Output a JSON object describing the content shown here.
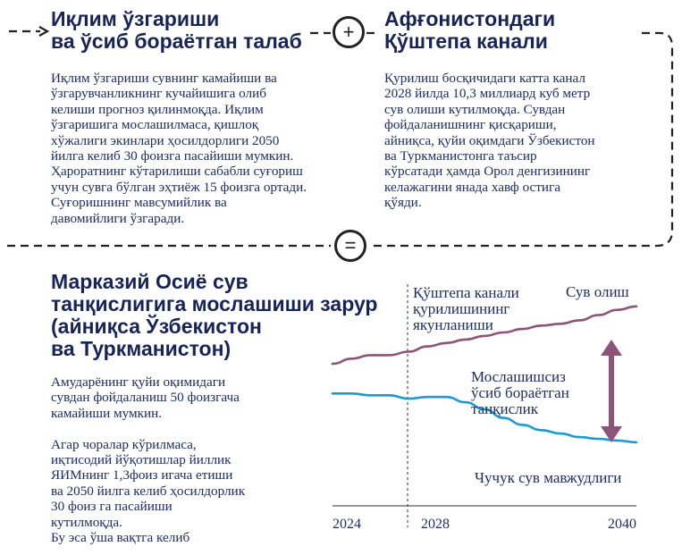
{
  "left_panel": {
    "title_line1": "Иқлим ўзгариши",
    "title_line2": "ва ўсиб бораётган талаб",
    "body": [
      "Иқлим ўзгариши сувнинг камайиши ва",
      "ўзгарувчанликнинг кучайишига олиб",
      "келиши прогноз қилинмоқда. Иқлим",
      "ўзгаришига мослашилмаса, қишлоқ",
      "хўжалиги экинлари ҳосилдорлиги 2050",
      "йилга келиб 30 фоизга пасайиши мумкин.",
      "Ҳароратнинг кўтарилиши сабабли суғориш",
      "учун сувга бўлган эҳтиёж 15 фоизга ортади.",
      "Суғоришнинг мавсумийлик ва",
      "давомийлиги ўзгаради."
    ]
  },
  "plus_symbol": "+",
  "equals_symbol": "=",
  "right_panel": {
    "title_line1": "Афғонистондаги",
    "title_line2": "Қўштепа канали",
    "body": [
      "Қурилиш босқичидаги катта канал",
      "2028 йилда 10,3 миллиард куб метр",
      "сув олиши кутилмоқда. Сувдан",
      "фойдаланишнинг қисқариши,",
      "айниқса, қуйи оқимдаги Ўзбекистон",
      "ва Туркманистонга таъсир",
      "кўрсатади ҳамда Орол денгизининг",
      "келажагини янада хавф остига",
      "қўяди."
    ]
  },
  "bottom_panel": {
    "title_lines": [
      "Марказий Осиё сув",
      "танқислигига мослашиши зарур",
      "(айниқса Ўзбекистон",
      "ва Туркманистон)"
    ],
    "body": [
      "Амударёнинг қуйи оқимидаги",
      "сувдан фойдаланиш 50 фоизгача",
      "камайиши мумкин.",
      "",
      "Агар чоралар кўрилмаса,",
      "иқтисодий йўқотишлар йиллик",
      "ЯИМнинг 1,3фоиз игача етиши",
      "ва 2050 йилга келиб ҳосилдорлик",
      "30 фоиз га пасайиши",
      "кутилмоқда.",
      "Бу эса ўша вақтга келиб"
    ]
  },
  "chart_data": {
    "type": "line",
    "x_ticks": [
      "2024",
      "2028",
      "2040"
    ],
    "xlim": [
      2024,
      2040
    ],
    "ylim": [
      0,
      100
    ],
    "marker": {
      "x": 2028,
      "label": [
        "Қўштепа канали",
        "қурилишининг",
        "якунланиши"
      ]
    },
    "gap_label": [
      "Мослашишсиз",
      "ўсиб бораётган",
      "танқислик"
    ],
    "series": [
      {
        "name": "Сув олиш",
        "color": "#8c5478",
        "x": [
          2024,
          2025,
          2026,
          2027,
          2028,
          2029,
          2030,
          2031,
          2032,
          2033,
          2034,
          2035,
          2036,
          2037,
          2038,
          2039,
          2040
        ],
        "y": [
          63,
          66,
          68,
          68,
          70,
          73,
          75,
          77,
          79,
          81,
          83,
          85,
          86,
          88,
          91,
          94,
          96
        ]
      },
      {
        "name": "Чучук сув мавжудлиги",
        "color": "#1a9ad6",
        "x": [
          2024,
          2025,
          2026,
          2027,
          2028,
          2029,
          2030,
          2031,
          2032,
          2033,
          2034,
          2035,
          2036,
          2037,
          2038,
          2039,
          2040
        ],
        "y": [
          46,
          46,
          45,
          45,
          43,
          44,
          44,
          41,
          37,
          32,
          28,
          25,
          23,
          21,
          20,
          19,
          18
        ]
      }
    ],
    "arrow_color": "#8c5478",
    "text_color": "#1d2d66"
  }
}
